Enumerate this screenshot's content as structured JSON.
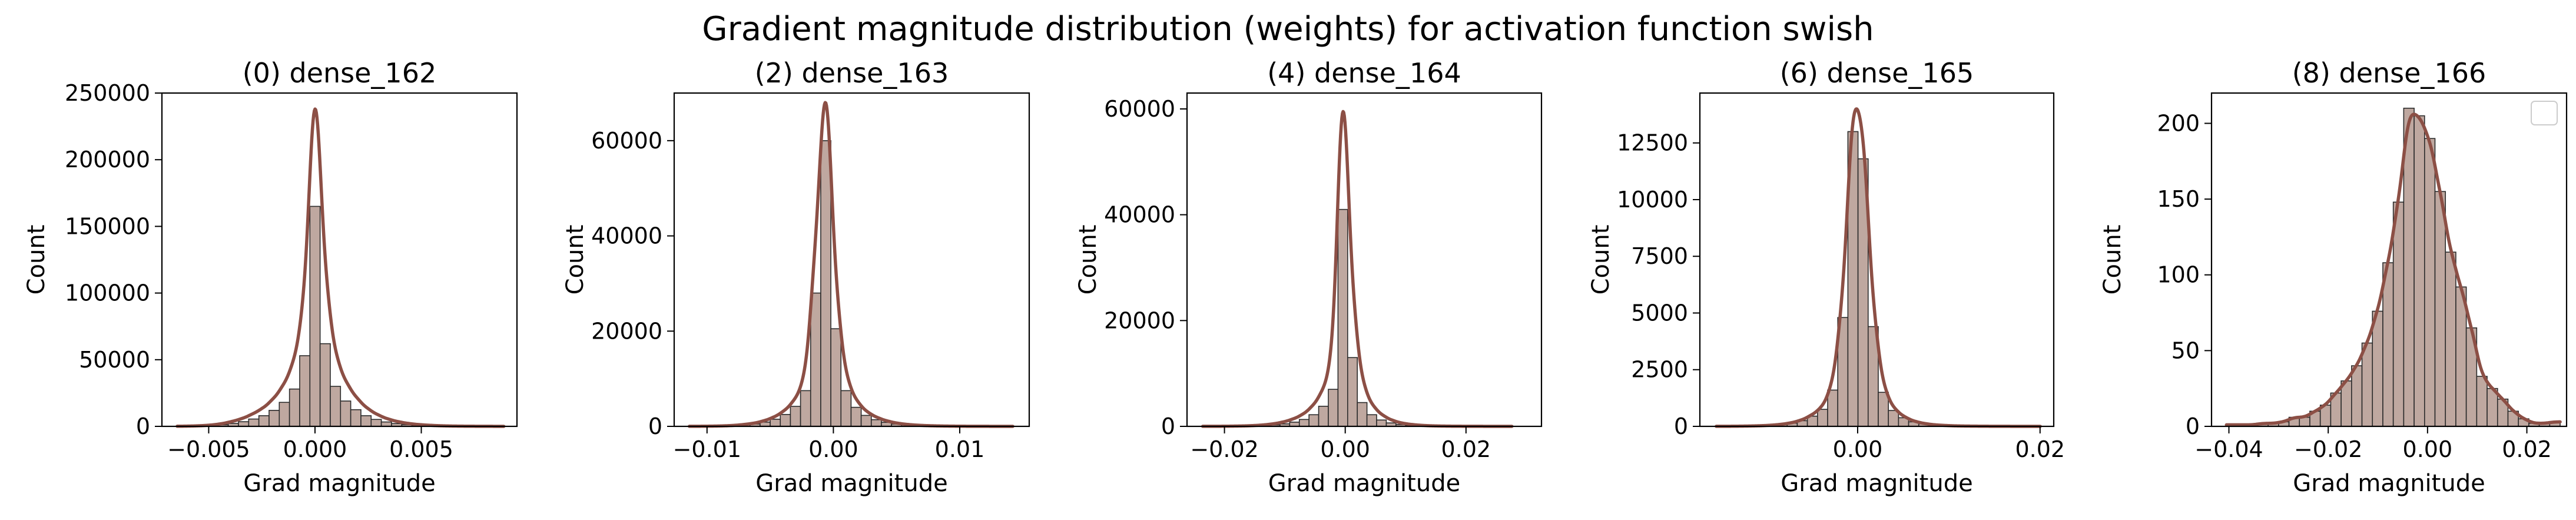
{
  "suptitle": "Gradient magnitude distribution (weights) for activation function swish",
  "colors": {
    "bar_fill": "#bfa8a0",
    "bar_edge": "#2b2b2b",
    "kde": "#8c4f45",
    "axes": "#000000"
  },
  "chart_data": [
    {
      "type": "bar",
      "title": "(0) dense_162",
      "xlabel": "Grad magnitude",
      "ylabel": "Count",
      "xlim": [
        -0.0072,
        0.0095
      ],
      "ylim": [
        0,
        250000
      ],
      "xticks": [
        -0.005,
        0.0,
        0.005
      ],
      "xtick_labels": [
        "−0.005",
        "0.000",
        "0.005"
      ],
      "yticks": [
        0,
        50000,
        100000,
        150000,
        200000,
        250000
      ],
      "ytick_labels": [
        "0",
        "50000",
        "100000",
        "150000",
        "200000",
        "250000"
      ],
      "grid": false,
      "legend": false,
      "bin_edges": [
        -0.00648,
        -0.006,
        -0.00552,
        -0.00504,
        -0.00456,
        -0.00408,
        -0.0036,
        -0.00312,
        -0.00264,
        -0.00216,
        -0.00168,
        -0.0012,
        -0.00072,
        -0.00024,
        0.00024,
        0.00072,
        0.0012,
        0.00168,
        0.00216,
        0.00264,
        0.00312,
        0.0036,
        0.00408,
        0.00456,
        0.00504,
        0.00552,
        0.006,
        0.00648,
        0.00696,
        0.00744,
        0.00792,
        0.0084,
        0.00888
      ],
      "counts": [
        60,
        150,
        300,
        600,
        1200,
        2200,
        3500,
        5500,
        8000,
        12000,
        18000,
        28000,
        53000,
        165000,
        62000,
        30000,
        19000,
        12500,
        8000,
        5200,
        3300,
        2100,
        1300,
        800,
        500,
        300,
        170,
        100,
        60,
        40,
        20,
        10
      ],
      "kde_peak": 238000
    },
    {
      "type": "bar",
      "title": "(2) dense_163",
      "xlabel": "Grad magnitude",
      "ylabel": "Count",
      "xlim": [
        -0.0126,
        0.0155
      ],
      "ylim": [
        0,
        70000
      ],
      "xticks": [
        -0.01,
        0.0,
        0.01
      ],
      "xtick_labels": [
        "−0.01",
        "0.00",
        "0.01"
      ],
      "yticks": [
        0,
        20000,
        40000,
        60000
      ],
      "ytick_labels": [
        "0",
        "20000",
        "40000",
        "60000"
      ],
      "grid": false,
      "legend": false,
      "bin_edges": [
        -0.0114,
        -0.0106,
        -0.0098,
        -0.009,
        -0.0082,
        -0.0074,
        -0.0066,
        -0.0058,
        -0.005,
        -0.0042,
        -0.0034,
        -0.0026,
        -0.0018,
        -0.001,
        -0.0002,
        0.0006,
        0.0014,
        0.0022,
        0.003,
        0.0038,
        0.0046,
        0.0054,
        0.0062,
        0.007,
        0.0078,
        0.0086,
        0.0094,
        0.0102,
        0.011,
        0.0118,
        0.0126,
        0.0134,
        0.0142
      ],
      "counts": [
        10,
        20,
        40,
        80,
        150,
        300,
        500,
        900,
        1500,
        2500,
        4200,
        7500,
        28000,
        60000,
        20500,
        7500,
        4000,
        2300,
        1400,
        850,
        500,
        300,
        180,
        110,
        70,
        40,
        25,
        15,
        10,
        6,
        4,
        2
      ],
      "kde_peak": 68000
    },
    {
      "type": "bar",
      "title": "(4) dense_164",
      "xlabel": "Grad magnitude",
      "ylabel": "Count",
      "xlim": [
        -0.0262,
        0.0325
      ],
      "ylim": [
        0,
        63000
      ],
      "xticks": [
        -0.02,
        0.0,
        0.02
      ],
      "xtick_labels": [
        "−0.02",
        "0.00",
        "0.02"
      ],
      "yticks": [
        0,
        20000,
        40000,
        60000
      ],
      "ytick_labels": [
        "0",
        "20000",
        "40000",
        "60000"
      ],
      "grid": false,
      "legend": false,
      "bin_edges": [
        -0.0236,
        -0.022,
        -0.0204,
        -0.0188,
        -0.0172,
        -0.0156,
        -0.014,
        -0.0124,
        -0.0108,
        -0.0092,
        -0.0076,
        -0.006,
        -0.0044,
        -0.0028,
        -0.0012,
        0.0004,
        0.002,
        0.0036,
        0.0052,
        0.0068,
        0.0084,
        0.01,
        0.0116,
        0.0132,
        0.0148,
        0.0164,
        0.018,
        0.0196,
        0.0212,
        0.0228,
        0.0244,
        0.026,
        0.0276
      ],
      "counts": [
        4,
        8,
        15,
        30,
        50,
        90,
        160,
        280,
        480,
        800,
        1300,
        2200,
        3800,
        7000,
        41000,
        13000,
        4500,
        2200,
        1200,
        650,
        350,
        200,
        110,
        60,
        35,
        20,
        12,
        8,
        5,
        3,
        2,
        1
      ],
      "kde_peak": 59500
    },
    {
      "type": "bar",
      "title": "(6) dense_165",
      "xlabel": "Grad magnitude",
      "ylabel": "Count",
      "xlim": [
        -0.0173,
        0.0215
      ],
      "ylim": [
        0,
        14700
      ],
      "xticks": [
        0.0,
        0.02
      ],
      "xtick_labels": [
        "0.00",
        "0.02"
      ],
      "yticks": [
        0,
        2500,
        5000,
        7500,
        10000,
        12500
      ],
      "ytick_labels": [
        "0",
        "2500",
        "5000",
        "7500",
        "10000",
        "12500"
      ],
      "grid": false,
      "legend": false,
      "bin_edges": [
        -0.0155,
        -0.01439,
        -0.01328,
        -0.01217,
        -0.01106,
        -0.00995,
        -0.00884,
        -0.00773,
        -0.00662,
        -0.00551,
        -0.0044,
        -0.00329,
        -0.00218,
        -0.00107,
        4e-05,
        0.00115,
        0.00226,
        0.00337,
        0.00448,
        0.00559,
        0.0067,
        0.00781,
        0.00892,
        0.01003,
        0.01114,
        0.01225,
        0.01336,
        0.01447,
        0.01558,
        0.01669,
        0.0178,
        0.01891,
        0.02002
      ],
      "counts": [
        2,
        4,
        8,
        15,
        25,
        45,
        80,
        140,
        250,
        450,
        750,
        1600,
        4800,
        13000,
        11800,
        4400,
        1500,
        700,
        380,
        200,
        110,
        60,
        35,
        20,
        12,
        8,
        5,
        3,
        2,
        1,
        1,
        1
      ],
      "kde_peak": 14000
    },
    {
      "type": "bar",
      "title": "(8) dense_166",
      "xlabel": "Grad magnitude",
      "ylabel": "Count",
      "xlim": [
        -0.0435,
        0.028
      ],
      "ylim": [
        0,
        220
      ],
      "xticks": [
        -0.04,
        -0.02,
        0.0,
        0.02
      ],
      "xtick_labels": [
        "−0.04",
        "−0.02",
        "0.00",
        "0.02"
      ],
      "yticks": [
        0,
        50,
        100,
        150,
        200
      ],
      "ytick_labels": [
        "0",
        "50",
        "100",
        "150",
        "200"
      ],
      "grid": false,
      "legend": "top-right",
      "bin_edges": [
        -0.0405,
        -0.0384,
        -0.0363,
        -0.0342,
        -0.0321,
        -0.03,
        -0.0279,
        -0.0258,
        -0.0237,
        -0.0216,
        -0.0195,
        -0.0174,
        -0.0153,
        -0.0132,
        -0.0111,
        -0.009,
        -0.0069,
        -0.0048,
        -0.0027,
        -0.0006,
        0.0015,
        0.0036,
        0.0057,
        0.0078,
        0.0099,
        0.012,
        0.0141,
        0.0162,
        0.0183,
        0.0204,
        0.0225,
        0.0246,
        0.0267
      ],
      "counts": [
        1,
        1,
        1,
        2,
        2,
        3,
        6,
        6,
        10,
        14,
        22,
        30,
        40,
        55,
        76,
        108,
        148,
        210,
        205,
        190,
        155,
        115,
        92,
        65,
        33,
        25,
        18,
        10,
        5,
        2,
        2,
        3
      ],
      "kde_peak": 206
    }
  ]
}
